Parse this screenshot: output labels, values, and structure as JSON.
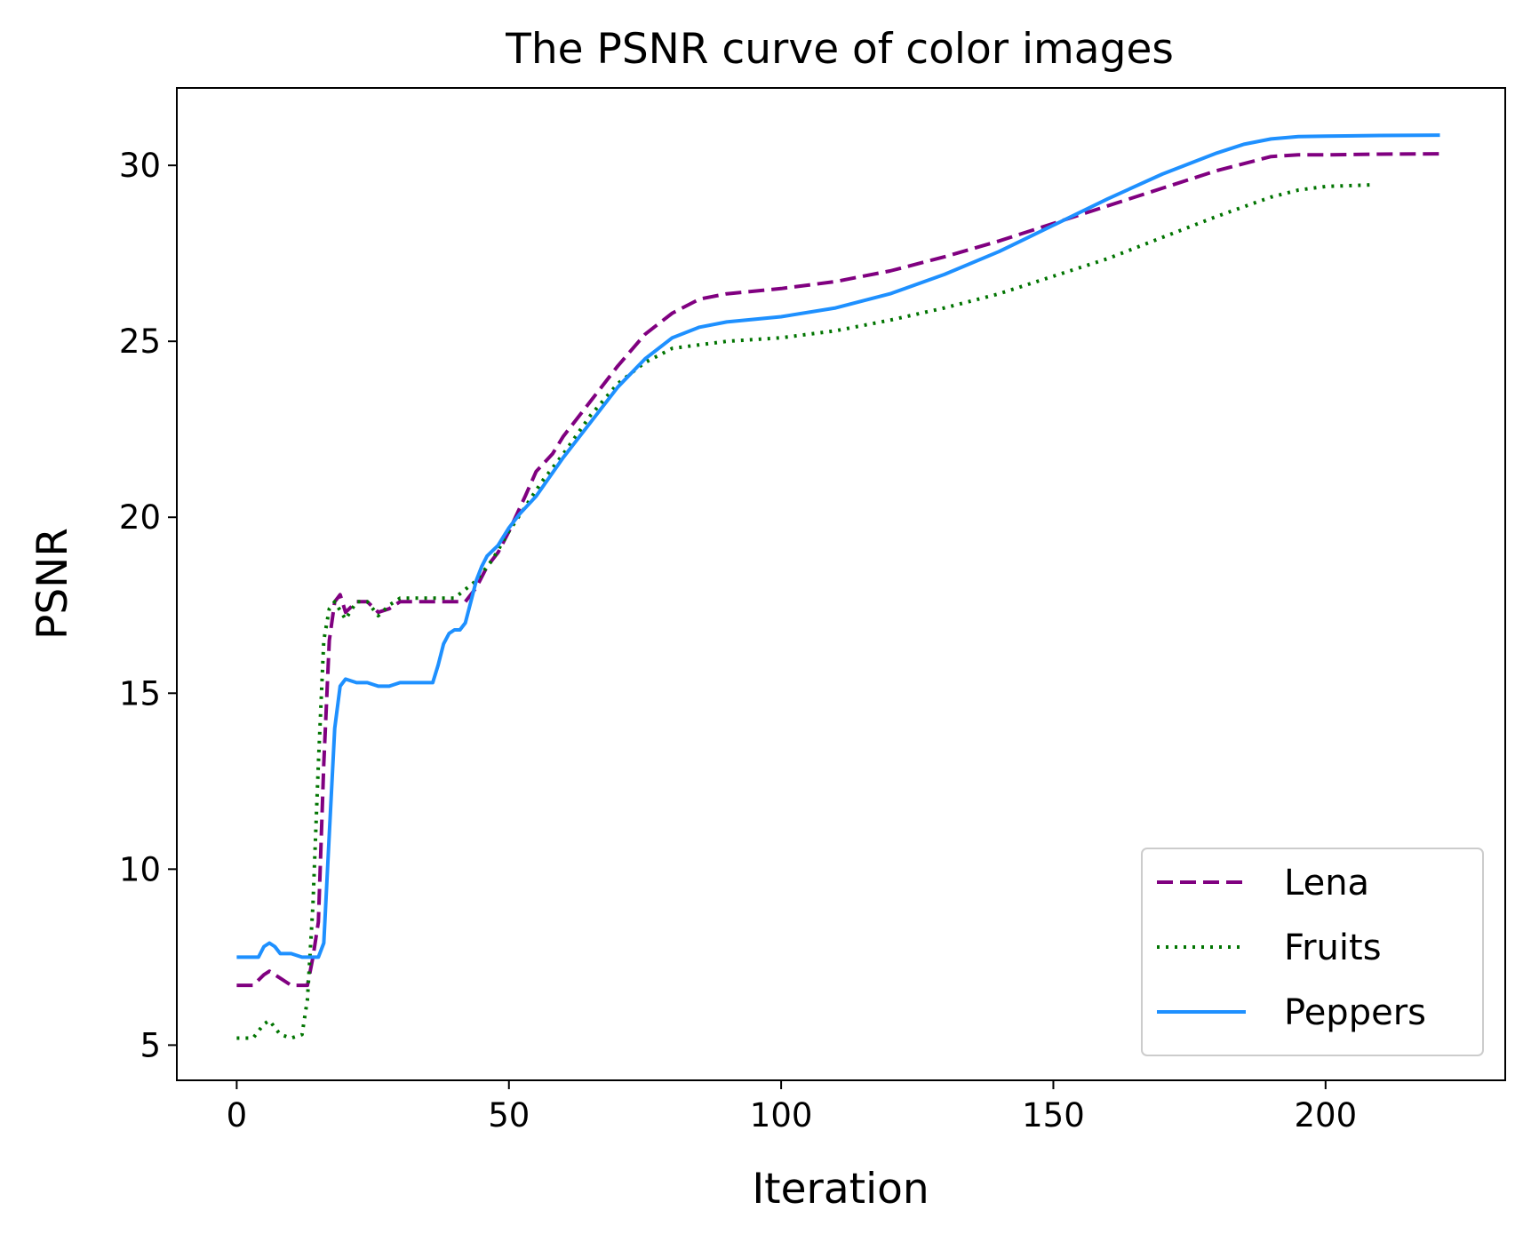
{
  "chart_data": {
    "type": "line",
    "title": "The PSNR curve of color images",
    "xlabel": "Iteration",
    "ylabel": "PSNR",
    "xlim": [
      -11,
      233
    ],
    "ylim": [
      4,
      32.2
    ],
    "xticks": [
      0,
      50,
      100,
      150,
      200
    ],
    "yticks": [
      5,
      10,
      15,
      20,
      25,
      30
    ],
    "grid": false,
    "legend_position": "lower-right",
    "series": [
      {
        "name": "Lena",
        "style": "dashed",
        "color": "#800080",
        "x": [
          0,
          3,
          5,
          6,
          8,
          10,
          13,
          14,
          15,
          16,
          17,
          18,
          19,
          20,
          22,
          24,
          26,
          28,
          30,
          35,
          40,
          42,
          44,
          46,
          48,
          50,
          53,
          55,
          58,
          60,
          65,
          70,
          75,
          80,
          85,
          90,
          100,
          110,
          120,
          130,
          140,
          150,
          160,
          170,
          180,
          190,
          195,
          200,
          210,
          222
        ],
        "y": [
          6.7,
          6.7,
          7.0,
          7.1,
          6.9,
          6.7,
          6.7,
          7.5,
          8.5,
          13.0,
          16.5,
          17.6,
          17.8,
          17.3,
          17.6,
          17.6,
          17.3,
          17.4,
          17.6,
          17.6,
          17.6,
          17.6,
          18.0,
          18.6,
          19.0,
          19.6,
          20.6,
          21.3,
          21.8,
          22.3,
          23.3,
          24.3,
          25.2,
          25.8,
          26.2,
          26.35,
          26.5,
          26.7,
          27.0,
          27.4,
          27.85,
          28.35,
          28.85,
          29.35,
          29.85,
          30.25,
          30.3,
          30.3,
          30.32,
          30.33
        ]
      },
      {
        "name": "Fruits",
        "style": "dotted",
        "color": "#007400",
        "x": [
          0,
          3,
          5,
          6,
          8,
          10,
          12,
          13,
          14,
          15,
          16,
          17,
          18,
          20,
          22,
          24,
          26,
          28,
          30,
          35,
          40,
          44,
          47,
          50,
          53,
          56,
          60,
          65,
          70,
          75,
          80,
          90,
          100,
          110,
          120,
          130,
          140,
          150,
          160,
          170,
          180,
          190,
          195,
          200,
          209
        ],
        "y": [
          5.2,
          5.2,
          5.6,
          5.7,
          5.3,
          5.2,
          5.3,
          6.3,
          9.0,
          13.0,
          16.5,
          17.4,
          17.6,
          17.1,
          17.6,
          17.6,
          17.2,
          17.5,
          17.7,
          17.7,
          17.7,
          18.2,
          18.8,
          19.6,
          20.3,
          21.0,
          21.8,
          22.9,
          23.8,
          24.4,
          24.8,
          25.0,
          25.1,
          25.3,
          25.6,
          25.95,
          26.35,
          26.85,
          27.35,
          27.95,
          28.55,
          29.1,
          29.3,
          29.4,
          29.45
        ]
      },
      {
        "name": "Peppers",
        "style": "solid",
        "color": "#1E90FF",
        "x": [
          0,
          4,
          5,
          6,
          7,
          8,
          10,
          12,
          14,
          15,
          16,
          17,
          18,
          19,
          20,
          22,
          24,
          26,
          28,
          30,
          33,
          36,
          37,
          38,
          39,
          40,
          41,
          42,
          43,
          44,
          45,
          46,
          48,
          50,
          52,
          55,
          60,
          65,
          70,
          75,
          80,
          85,
          90,
          100,
          110,
          120,
          130,
          140,
          150,
          160,
          170,
          180,
          185,
          190,
          195,
          200,
          210,
          221
        ],
        "y": [
          7.5,
          7.5,
          7.8,
          7.9,
          7.8,
          7.6,
          7.6,
          7.5,
          7.5,
          7.5,
          7.9,
          11.0,
          14.0,
          15.2,
          15.4,
          15.3,
          15.3,
          15.2,
          15.2,
          15.3,
          15.3,
          15.3,
          15.8,
          16.4,
          16.7,
          16.8,
          16.8,
          17.0,
          17.6,
          18.2,
          18.6,
          18.9,
          19.2,
          19.7,
          20.1,
          20.6,
          21.7,
          22.7,
          23.7,
          24.5,
          25.1,
          25.4,
          25.55,
          25.7,
          25.95,
          26.35,
          26.9,
          27.55,
          28.3,
          29.05,
          29.75,
          30.35,
          30.6,
          30.75,
          30.82,
          30.83,
          30.85,
          30.86
        ]
      }
    ]
  }
}
